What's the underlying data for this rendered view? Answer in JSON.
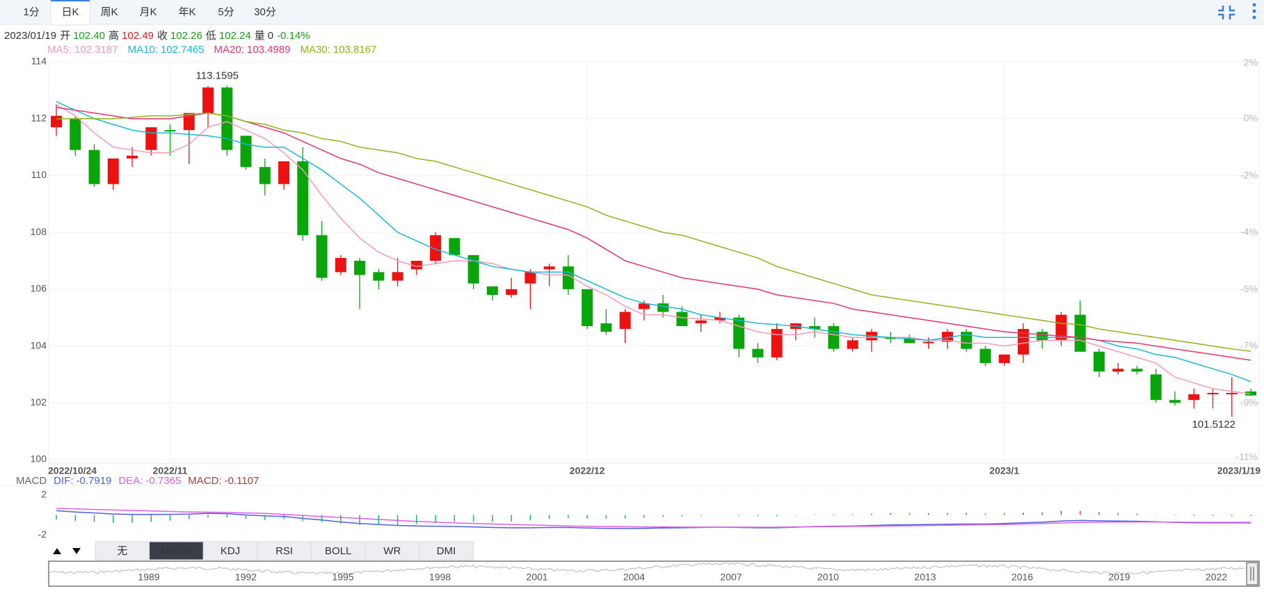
{
  "tabs": [
    "1分",
    "日K",
    "周K",
    "月K",
    "年K",
    "5分",
    "30分"
  ],
  "active_tab": "日K",
  "quote": {
    "date": "2023/01/19",
    "fields": [
      {
        "label": "开",
        "value": "102.40",
        "color": "#16a016"
      },
      {
        "label": "高",
        "value": "102.49",
        "color": "#e01b1b"
      },
      {
        "label": "收",
        "value": "102.26",
        "color": "#16a016"
      },
      {
        "label": "低",
        "value": "102.24",
        "color": "#16a016"
      },
      {
        "label": "量",
        "value": "0",
        "color": "#333333"
      }
    ],
    "change": "-0.14%",
    "change_color": "#16a016"
  },
  "chart_data": [
    {
      "type": "candlestick",
      "up_color": "#ee1111",
      "down_color": "#0aa50a",
      "grid": true,
      "categories": [
        "2022/10/24",
        null,
        null,
        null,
        null,
        null,
        "2022/11",
        null,
        null,
        null,
        null,
        null,
        null,
        null,
        null,
        null,
        null,
        null,
        null,
        null,
        null,
        null,
        null,
        null,
        null,
        null,
        null,
        null,
        "2022/12",
        null,
        null,
        null,
        null,
        null,
        null,
        null,
        null,
        null,
        null,
        null,
        null,
        null,
        null,
        null,
        null,
        null,
        null,
        null,
        null,
        null,
        "2023/1",
        null,
        null,
        null,
        null,
        null,
        null,
        null,
        null,
        null,
        null,
        null,
        null,
        "2023/1/19"
      ],
      "open": [
        111.7,
        112.0,
        110.9,
        109.7,
        110.6,
        110.9,
        111.6,
        111.6,
        112.2,
        113.1,
        111.4,
        110.3,
        109.7,
        110.5,
        107.9,
        106.6,
        107.0,
        106.6,
        106.3,
        106.7,
        107.0,
        107.8,
        107.2,
        106.1,
        105.8,
        106.2,
        106.7,
        106.8,
        106.0,
        104.8,
        104.6,
        105.3,
        105.5,
        105.2,
        104.8,
        104.9,
        105.0,
        103.9,
        103.6,
        104.6,
        104.7,
        104.7,
        103.9,
        104.2,
        104.3,
        104.3,
        104.1,
        104.15,
        104.5,
        103.9,
        103.4,
        103.7,
        104.5,
        104.2,
        105.1,
        103.8,
        103.1,
        103.2,
        103.0,
        102.1,
        102.1,
        102.3,
        102.3,
        102.4
      ],
      "high": [
        112.5,
        112.1,
        111.1,
        110.6,
        111.0,
        111.7,
        111.8,
        112.2,
        113.15,
        113.1595,
        111.4,
        110.6,
        110.5,
        111.0,
        108.4,
        107.2,
        107.1,
        106.7,
        107.1,
        107.0,
        108.0,
        107.8,
        107.2,
        106.1,
        106.4,
        106.7,
        106.9,
        107.2,
        106.0,
        105.3,
        105.3,
        105.6,
        105.8,
        105.4,
        105.1,
        105.2,
        105.1,
        104.1,
        104.8,
        104.8,
        105.0,
        104.8,
        104.3,
        104.6,
        104.5,
        104.4,
        104.3,
        104.6,
        104.6,
        104.0,
        103.7,
        104.8,
        104.6,
        105.2,
        105.6,
        103.9,
        103.4,
        103.3,
        103.2,
        102.4,
        102.5,
        102.5,
        102.9,
        102.49
      ],
      "low": [
        111.4,
        110.7,
        109.6,
        109.5,
        110.3,
        110.7,
        110.7,
        110.4,
        111.7,
        110.7,
        110.2,
        109.3,
        109.5,
        107.7,
        106.3,
        106.5,
        105.3,
        106.0,
        106.1,
        106.5,
        106.9,
        107.2,
        106.0,
        105.6,
        105.7,
        105.3,
        106.1,
        105.8,
        104.6,
        104.4,
        104.1,
        104.9,
        105.0,
        104.7,
        104.5,
        104.8,
        103.6,
        103.4,
        103.5,
        104.2,
        104.3,
        103.8,
        103.8,
        103.8,
        104.1,
        104.1,
        103.9,
        103.9,
        103.8,
        103.3,
        103.3,
        103.4,
        103.9,
        104.0,
        103.8,
        102.9,
        103.0,
        103.0,
        102.0,
        101.9,
        101.8,
        101.8,
        101.5122,
        102.24
      ],
      "close": [
        112.1,
        110.9,
        109.7,
        110.6,
        110.7,
        111.7,
        111.55,
        112.2,
        113.1,
        110.9,
        110.3,
        109.7,
        110.5,
        107.9,
        106.4,
        107.1,
        106.5,
        106.3,
        106.6,
        107.0,
        107.9,
        107.2,
        106.2,
        105.8,
        106.0,
        106.6,
        106.8,
        106.0,
        104.7,
        104.5,
        105.2,
        105.5,
        105.2,
        104.7,
        104.9,
        105.0,
        103.9,
        103.6,
        104.6,
        104.8,
        104.6,
        103.9,
        104.2,
        104.5,
        104.25,
        104.1,
        104.15,
        104.5,
        103.9,
        103.4,
        103.7,
        104.6,
        104.2,
        105.1,
        103.8,
        103.1,
        103.2,
        103.1,
        102.1,
        102.0,
        102.3,
        102.35,
        102.35,
        102.26
      ],
      "series": [
        {
          "name": "MA5:",
          "color": "#f59ab8",
          "values": [
            112.5,
            112.1,
            111.5,
            111.0,
            110.9,
            110.8,
            110.8,
            111.1,
            111.7,
            111.9,
            111.6,
            111.3,
            110.8,
            110.2,
            109.3,
            108.5,
            107.8,
            107.3,
            107.0,
            106.8,
            106.9,
            107.0,
            107.0,
            106.9,
            106.7,
            106.6,
            106.5,
            106.5,
            106.1,
            105.8,
            105.4,
            105.1,
            105.1,
            105.0,
            104.95,
            104.9,
            104.7,
            104.5,
            104.4,
            104.4,
            104.5,
            104.4,
            104.3,
            104.3,
            104.3,
            104.3,
            104.2,
            104.2,
            104.1,
            104.1,
            104.0,
            104.1,
            104.2,
            104.2,
            104.2,
            104.0,
            103.8,
            103.6,
            103.4,
            102.9,
            102.7,
            102.5,
            102.4,
            102.3187
          ]
        },
        {
          "name": "MA10:",
          "color": "#1ab8d8",
          "values": [
            112.6,
            112.3,
            112.0,
            111.8,
            111.6,
            111.5,
            111.5,
            111.45,
            111.4,
            111.3,
            111.1,
            111.0,
            111.0,
            110.6,
            110.2,
            109.7,
            109.2,
            108.6,
            108.0,
            107.7,
            107.4,
            107.2,
            107.0,
            106.8,
            106.7,
            106.6,
            106.6,
            106.6,
            106.3,
            106.0,
            105.7,
            105.5,
            105.4,
            105.3,
            105.1,
            105.0,
            104.9,
            104.8,
            104.75,
            104.7,
            104.6,
            104.5,
            104.4,
            104.35,
            104.3,
            104.25,
            104.2,
            104.3,
            104.4,
            104.3,
            104.3,
            104.3,
            104.3,
            104.3,
            104.3,
            104.2,
            104.0,
            103.9,
            103.7,
            103.6,
            103.4,
            103.2,
            103.0,
            102.7465
          ]
        },
        {
          "name": "MA20:",
          "color": "#e8336b",
          "values": [
            112.4,
            112.3,
            112.2,
            112.1,
            112.0,
            112.0,
            112.0,
            112.1,
            112.2,
            112.1,
            111.9,
            111.7,
            111.5,
            111.2,
            110.9,
            110.6,
            110.4,
            110.1,
            109.9,
            109.7,
            109.5,
            109.3,
            109.1,
            108.9,
            108.7,
            108.5,
            108.3,
            108.1,
            107.8,
            107.4,
            107.0,
            106.8,
            106.6,
            106.4,
            106.3,
            106.2,
            106.1,
            106.0,
            105.8,
            105.7,
            105.6,
            105.5,
            105.3,
            105.2,
            105.1,
            105.0,
            104.9,
            104.8,
            104.7,
            104.6,
            104.5,
            104.45,
            104.4,
            104.35,
            104.3,
            104.2,
            104.15,
            104.1,
            104.0,
            103.9,
            103.8,
            103.7,
            103.6,
            103.4989
          ]
        },
        {
          "name": "MA30:",
          "color": "#8db51c",
          "values": [
            112.0,
            112.0,
            112.0,
            112.0,
            112.05,
            112.1,
            112.1,
            112.15,
            112.2,
            112.1,
            111.9,
            111.8,
            111.6,
            111.5,
            111.3,
            111.2,
            111.0,
            110.9,
            110.8,
            110.6,
            110.5,
            110.3,
            110.1,
            109.9,
            109.7,
            109.5,
            109.3,
            109.1,
            108.9,
            108.6,
            108.4,
            108.2,
            108.0,
            107.9,
            107.7,
            107.5,
            107.3,
            107.1,
            106.8,
            106.6,
            106.4,
            106.2,
            106.0,
            105.8,
            105.7,
            105.6,
            105.5,
            105.4,
            105.3,
            105.2,
            105.1,
            105.0,
            104.9,
            104.8,
            104.75,
            104.6,
            104.5,
            104.4,
            104.3,
            104.2,
            104.1,
            104.0,
            103.9,
            103.8167
          ]
        }
      ],
      "ylim": [
        100,
        114
      ],
      "yticks": [
        100,
        102,
        104,
        106,
        108,
        110,
        112,
        114
      ],
      "y2lim": [
        -10.71,
        1.79
      ],
      "y2ticks": [
        {
          "value": -10.71,
          "label": "-11%"
        },
        {
          "value": -8.93,
          "label": "-9%"
        },
        {
          "value": -7.14,
          "label": "-7%"
        },
        {
          "value": -5.36,
          "label": "-5%"
        },
        {
          "value": -3.57,
          "label": "-4%"
        },
        {
          "value": -1.79,
          "label": "-2%"
        },
        {
          "value": 0,
          "label": "0%"
        },
        {
          "value": 1.79,
          "label": "2%"
        }
      ]
    },
    {
      "type": "macd",
      "title": "MACD",
      "up_color": "#c0504d",
      "down_color": "#1bb38a",
      "grid": true,
      "series": [
        {
          "name": "DIF:",
          "color": "#4d5fe0",
          "values": [
            0.42,
            0.3,
            0.2,
            0.1,
            0.05,
            0.05,
            0.06,
            0.08,
            0.15,
            0.12,
            0.0,
            -0.1,
            -0.15,
            -0.35,
            -0.5,
            -0.7,
            -0.85,
            -0.95,
            -1.05,
            -1.1,
            -1.12,
            -1.15,
            -1.2,
            -1.25,
            -1.28,
            -1.28,
            -1.25,
            -1.25,
            -1.3,
            -1.33,
            -1.35,
            -1.33,
            -1.3,
            -1.28,
            -1.25,
            -1.22,
            -1.25,
            -1.28,
            -1.28,
            -1.22,
            -1.15,
            -1.12,
            -1.1,
            -1.05,
            -1.0,
            -0.98,
            -0.96,
            -0.93,
            -0.9,
            -0.9,
            -0.85,
            -0.78,
            -0.72,
            -0.6,
            -0.55,
            -0.58,
            -0.6,
            -0.63,
            -0.68,
            -0.75,
            -0.78,
            -0.79,
            -0.79,
            -0.7919
          ]
        },
        {
          "name": "DEA:",
          "color": "#e05ce8",
          "values": [
            0.65,
            0.6,
            0.55,
            0.5,
            0.45,
            0.4,
            0.35,
            0.3,
            0.28,
            0.25,
            0.2,
            0.15,
            0.05,
            -0.05,
            -0.15,
            -0.25,
            -0.35,
            -0.45,
            -0.55,
            -0.65,
            -0.72,
            -0.8,
            -0.85,
            -0.9,
            -0.95,
            -1.0,
            -1.05,
            -1.1,
            -1.12,
            -1.15,
            -1.17,
            -1.19,
            -1.2,
            -1.21,
            -1.21,
            -1.21,
            -1.21,
            -1.22,
            -1.22,
            -1.2,
            -1.18,
            -1.16,
            -1.14,
            -1.12,
            -1.1,
            -1.08,
            -1.05,
            -1.02,
            -1.0,
            -0.97,
            -0.95,
            -0.9,
            -0.85,
            -0.8,
            -0.75,
            -0.72,
            -0.7,
            -0.7,
            -0.7,
            -0.72,
            -0.73,
            -0.735,
            -0.736,
            -0.7365
          ]
        },
        {
          "name": "MACD:",
          "color": "#b03a3a",
          "values": [
            -0.46,
            -0.6,
            -0.7,
            -0.8,
            -0.8,
            -0.7,
            -0.58,
            -0.44,
            -0.26,
            -0.26,
            -0.4,
            -0.5,
            -0.4,
            -0.6,
            -0.7,
            -0.9,
            -1.0,
            -1.0,
            -1.0,
            -0.9,
            -0.8,
            -0.7,
            -0.7,
            -0.7,
            -0.66,
            -0.56,
            -0.4,
            -0.3,
            -0.36,
            -0.36,
            -0.36,
            -0.28,
            -0.2,
            -0.14,
            -0.08,
            -0.02,
            -0.08,
            -0.12,
            -0.12,
            -0.04,
            0.06,
            0.08,
            0.08,
            0.14,
            0.2,
            0.2,
            0.18,
            0.18,
            0.2,
            0.14,
            0.2,
            0.24,
            0.26,
            0.4,
            0.4,
            0.28,
            0.2,
            0.14,
            0.04,
            -0.06,
            -0.1,
            -0.11,
            -0.11,
            -0.1107
          ]
        }
      ],
      "ylim": [
        -2.6,
        2.6
      ],
      "yticks": [
        -2,
        2
      ]
    }
  ],
  "indicator_tabs": [
    "无",
    "MACD",
    "KDJ",
    "RSI",
    "BOLL",
    "WR",
    "DMI"
  ],
  "active_indicator": "MACD",
  "navigator": {
    "years": [
      "1989",
      "1992",
      "1995",
      "1998",
      "2001",
      "2004",
      "2007",
      "2010",
      "2013",
      "2016",
      "2019",
      "2022"
    ]
  }
}
